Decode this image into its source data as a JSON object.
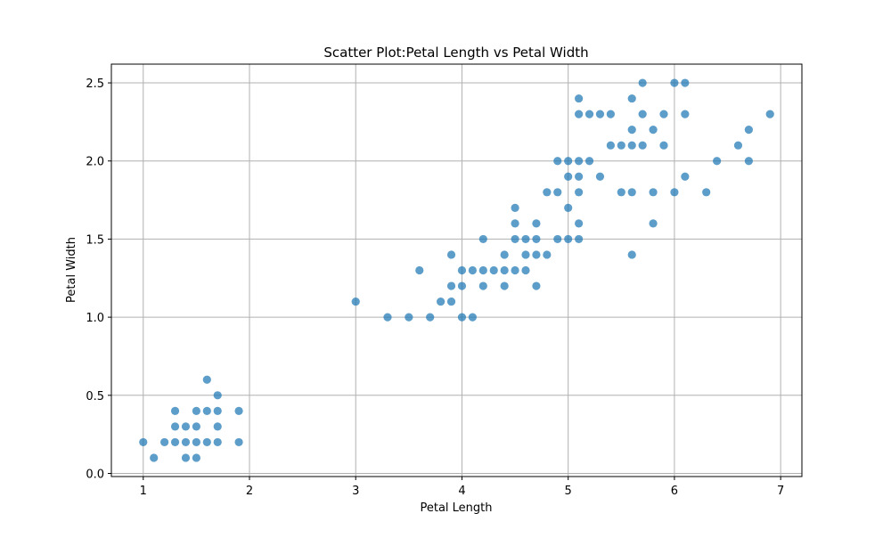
{
  "chart_data": {
    "type": "scatter",
    "title": "Scatter Plot:Petal Length vs Petal Width",
    "xlabel": "Petal Length",
    "ylabel": "Petal Width",
    "xlim": [
      0.7,
      7.2
    ],
    "ylim": [
      -0.02,
      2.62
    ],
    "xticks": [
      1,
      2,
      3,
      4,
      5,
      6,
      7
    ],
    "yticks": [
      0.0,
      0.5,
      1.0,
      1.5,
      2.0,
      2.5
    ],
    "xtick_labels": [
      "1",
      "2",
      "3",
      "4",
      "5",
      "6",
      "7"
    ],
    "ytick_labels": [
      "0.0",
      "0.5",
      "1.0",
      "1.5",
      "2.0",
      "2.5"
    ],
    "grid": true,
    "color": "#1f77b4",
    "points": [
      [
        1.0,
        0.2
      ],
      [
        1.1,
        0.1
      ],
      [
        1.2,
        0.2
      ],
      [
        1.3,
        0.2
      ],
      [
        1.3,
        0.3
      ],
      [
        1.3,
        0.4
      ],
      [
        1.4,
        0.1
      ],
      [
        1.4,
        0.2
      ],
      [
        1.4,
        0.3
      ],
      [
        1.5,
        0.1
      ],
      [
        1.5,
        0.2
      ],
      [
        1.5,
        0.3
      ],
      [
        1.5,
        0.4
      ],
      [
        1.6,
        0.2
      ],
      [
        1.6,
        0.4
      ],
      [
        1.6,
        0.6
      ],
      [
        1.7,
        0.2
      ],
      [
        1.7,
        0.3
      ],
      [
        1.7,
        0.4
      ],
      [
        1.7,
        0.5
      ],
      [
        1.9,
        0.2
      ],
      [
        1.9,
        0.4
      ],
      [
        3.0,
        1.1
      ],
      [
        3.3,
        1.0
      ],
      [
        3.5,
        1.0
      ],
      [
        3.6,
        1.3
      ],
      [
        3.7,
        1.0
      ],
      [
        3.8,
        1.1
      ],
      [
        3.9,
        1.1
      ],
      [
        3.9,
        1.2
      ],
      [
        3.9,
        1.4
      ],
      [
        4.0,
        1.0
      ],
      [
        4.0,
        1.2
      ],
      [
        4.0,
        1.3
      ],
      [
        4.1,
        1.0
      ],
      [
        4.1,
        1.3
      ],
      [
        4.2,
        1.2
      ],
      [
        4.2,
        1.3
      ],
      [
        4.2,
        1.5
      ],
      [
        4.3,
        1.3
      ],
      [
        4.4,
        1.2
      ],
      [
        4.4,
        1.3
      ],
      [
        4.4,
        1.4
      ],
      [
        4.5,
        1.3
      ],
      [
        4.5,
        1.5
      ],
      [
        4.5,
        1.6
      ],
      [
        4.5,
        1.7
      ],
      [
        4.6,
        1.3
      ],
      [
        4.6,
        1.4
      ],
      [
        4.6,
        1.5
      ],
      [
        4.7,
        1.2
      ],
      [
        4.7,
        1.4
      ],
      [
        4.7,
        1.5
      ],
      [
        4.7,
        1.6
      ],
      [
        4.8,
        1.4
      ],
      [
        4.8,
        1.8
      ],
      [
        4.9,
        1.5
      ],
      [
        4.9,
        1.8
      ],
      [
        4.9,
        2.0
      ],
      [
        5.0,
        1.5
      ],
      [
        5.0,
        1.7
      ],
      [
        5.0,
        1.9
      ],
      [
        5.0,
        2.0
      ],
      [
        5.1,
        1.5
      ],
      [
        5.1,
        1.6
      ],
      [
        5.1,
        1.8
      ],
      [
        5.1,
        1.9
      ],
      [
        5.1,
        2.0
      ],
      [
        5.1,
        2.3
      ],
      [
        5.1,
        2.4
      ],
      [
        5.2,
        2.0
      ],
      [
        5.2,
        2.3
      ],
      [
        5.3,
        1.9
      ],
      [
        5.3,
        2.3
      ],
      [
        5.4,
        2.1
      ],
      [
        5.4,
        2.3
      ],
      [
        5.5,
        1.8
      ],
      [
        5.5,
        2.1
      ],
      [
        5.6,
        1.4
      ],
      [
        5.6,
        1.8
      ],
      [
        5.6,
        2.1
      ],
      [
        5.6,
        2.2
      ],
      [
        5.6,
        2.4
      ],
      [
        5.7,
        2.1
      ],
      [
        5.7,
        2.3
      ],
      [
        5.7,
        2.5
      ],
      [
        5.8,
        1.6
      ],
      [
        5.8,
        1.8
      ],
      [
        5.8,
        2.2
      ],
      [
        5.9,
        2.1
      ],
      [
        5.9,
        2.3
      ],
      [
        6.0,
        1.8
      ],
      [
        6.0,
        2.5
      ],
      [
        6.1,
        1.9
      ],
      [
        6.1,
        2.3
      ],
      [
        6.1,
        2.5
      ],
      [
        6.3,
        1.8
      ],
      [
        6.4,
        2.0
      ],
      [
        6.6,
        2.1
      ],
      [
        6.7,
        2.0
      ],
      [
        6.7,
        2.2
      ],
      [
        6.9,
        2.3
      ]
    ]
  }
}
